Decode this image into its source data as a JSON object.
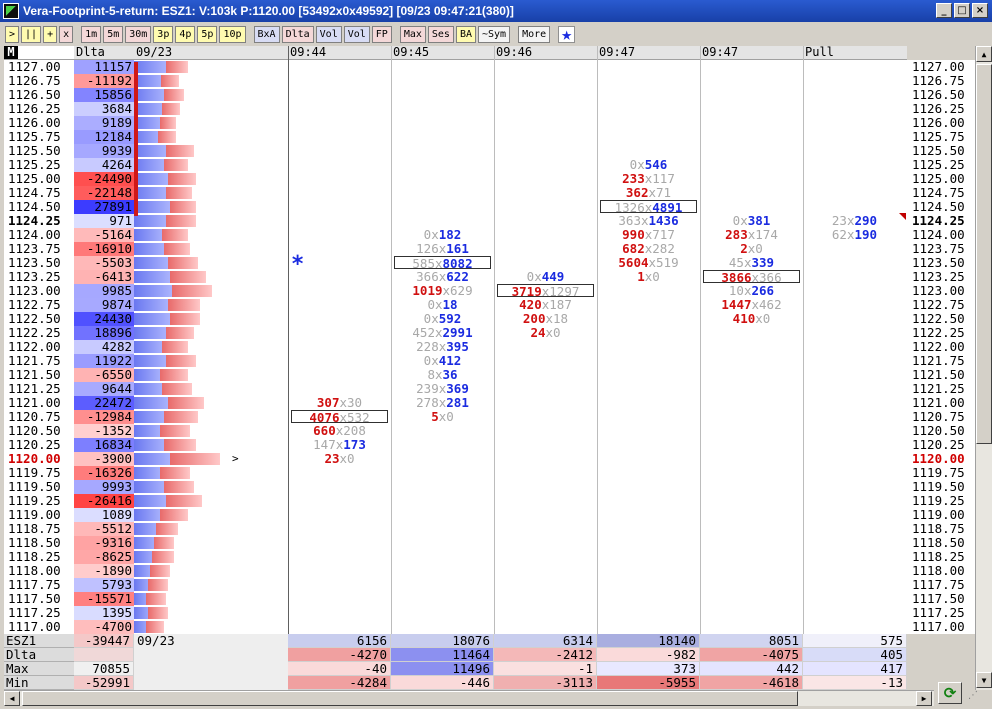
{
  "window": {
    "title": "Vera-Footprint-5-return: ESZ1: V:103k P:1120.00 [53492x0x49592] [09/23 09:47:21(380)]",
    "buttons": [
      "_",
      "□",
      "×"
    ]
  },
  "toolbar": {
    "buttons": [
      {
        "label": ">",
        "style": "y"
      },
      {
        "label": "||",
        "style": "y"
      },
      {
        "label": "+",
        "style": "y"
      },
      {
        "label": "x",
        "style": "p"
      },
      {
        "label": "1m",
        "style": "p"
      },
      {
        "label": "5m",
        "style": "p"
      },
      {
        "label": "30m",
        "style": "p"
      },
      {
        "label": "3p",
        "style": "y"
      },
      {
        "label": "4p",
        "style": "y"
      },
      {
        "label": "5p",
        "style": "y"
      },
      {
        "label": "10p",
        "style": "y"
      },
      {
        "label": "BxA",
        "style": "b"
      },
      {
        "label": "Dlta",
        "style": "p"
      },
      {
        "label": "Vol",
        "style": "b"
      },
      {
        "label": "Vol",
        "style": "b"
      },
      {
        "label": "FP",
        "style": "p"
      },
      {
        "label": "Max",
        "style": "p"
      },
      {
        "label": "Ses",
        "style": "p"
      },
      {
        "label": "BA",
        "style": "y"
      },
      {
        "label": "~Sym",
        "style": ""
      },
      {
        "label": "More",
        "style": ""
      }
    ],
    "star_icon": "star-icon"
  },
  "columns": {
    "m_label": "M",
    "delta_label": "Dlta",
    "date_label": "09/23",
    "times": [
      {
        "label": "09:44",
        "tick": "none"
      },
      {
        "label": "09:45",
        "tick": "red"
      },
      {
        "label": "09:46",
        "tick": "green"
      },
      {
        "label": "09:47",
        "tick": "red"
      },
      {
        "label": "09:47",
        "tick": "green"
      },
      {
        "label": "Pull",
        "tick": "red"
      }
    ]
  },
  "prices": [
    "1127.00",
    "1126.75",
    "1126.50",
    "1126.25",
    "1126.00",
    "1125.75",
    "1125.50",
    "1125.25",
    "1125.00",
    "1124.75",
    "1124.50",
    "1124.25",
    "1124.00",
    "1123.75",
    "1123.50",
    "1123.25",
    "1123.00",
    "1122.75",
    "1122.50",
    "1122.25",
    "1122.00",
    "1121.75",
    "1121.50",
    "1121.25",
    "1121.00",
    "1120.75",
    "1120.50",
    "1120.25",
    "1120.00",
    "1119.75",
    "1119.50",
    "1119.25",
    "1119.00",
    "1118.75",
    "1118.50",
    "1118.25",
    "1118.00",
    "1117.75",
    "1117.50",
    "1117.25",
    "1117.00"
  ],
  "current_price": "1120.00",
  "bold_price": "1124.25",
  "deltas": [
    "11157",
    "-11192",
    "15856",
    "3684",
    "9189",
    "12184",
    "9939",
    "4264",
    "-24490",
    "-22148",
    "27891",
    "971",
    "-5164",
    "-16910",
    "-5503",
    "-6413",
    "9985",
    "9874",
    "24430",
    "18896",
    "4282",
    "11922",
    "-6550",
    "9644",
    "22472",
    "-12984",
    "-1352",
    "16834",
    "-3900",
    "-16326",
    "9993",
    "-26416",
    "1089",
    "-5512",
    "-9316",
    "-8625",
    "-1890",
    "5793",
    "-15571",
    "1395",
    "-4700"
  ],
  "profile": [
    [
      40,
      22,
      0
    ],
    [
      35,
      18,
      0
    ],
    [
      38,
      20,
      0
    ],
    [
      36,
      18,
      0
    ],
    [
      34,
      16,
      0
    ],
    [
      32,
      18,
      0
    ],
    [
      40,
      28,
      0
    ],
    [
      38,
      24,
      0
    ],
    [
      42,
      28,
      0
    ],
    [
      40,
      26,
      0
    ],
    [
      44,
      26,
      0
    ],
    [
      40,
      30,
      0
    ],
    [
      36,
      26,
      0
    ],
    [
      38,
      26,
      0
    ],
    [
      42,
      30,
      0
    ],
    [
      44,
      36,
      0
    ],
    [
      46,
      40,
      0
    ],
    [
      42,
      32,
      0
    ],
    [
      44,
      30,
      0
    ],
    [
      40,
      28,
      0
    ],
    [
      36,
      26,
      0
    ],
    [
      40,
      30,
      0
    ],
    [
      34,
      28,
      0
    ],
    [
      36,
      30,
      0
    ],
    [
      42,
      36,
      0
    ],
    [
      38,
      34,
      0
    ],
    [
      34,
      30,
      0
    ],
    [
      38,
      32,
      0
    ],
    [
      44,
      50,
      1
    ],
    [
      34,
      30,
      0
    ],
    [
      38,
      30,
      0
    ],
    [
      40,
      36,
      0
    ],
    [
      34,
      28,
      0
    ],
    [
      30,
      22,
      0
    ],
    [
      28,
      20,
      0
    ],
    [
      26,
      22,
      0
    ],
    [
      24,
      20,
      0
    ],
    [
      22,
      20,
      0
    ],
    [
      20,
      20,
      0
    ],
    [
      22,
      20,
      0
    ],
    [
      20,
      18,
      0
    ]
  ],
  "current_marker": ">",
  "footprint": [
    {
      "col": 0,
      "row": 24,
      "bid": "307",
      "ask": "30",
      "style": "r"
    },
    {
      "col": 0,
      "row": 25,
      "bid": "4076",
      "ask": "532",
      "style": "r",
      "box": true
    },
    {
      "col": 0,
      "row": 26,
      "bid": "660",
      "ask": "208",
      "style": "r"
    },
    {
      "col": 0,
      "row": 27,
      "bid": "147",
      "ask": "173",
      "style": "b"
    },
    {
      "col": 0,
      "row": 28,
      "bid": "23",
      "ask": "0",
      "style": "r"
    },
    {
      "col": 1,
      "row": 12,
      "bid": "0",
      "ask": "182",
      "style": "b"
    },
    {
      "col": 1,
      "row": 13,
      "bid": "126",
      "ask": "161",
      "style": "b"
    },
    {
      "col": 1,
      "row": 14,
      "bid": "585",
      "ask": "8082",
      "style": "b",
      "box": true
    },
    {
      "col": 1,
      "row": 15,
      "bid": "366",
      "ask": "622",
      "style": "b"
    },
    {
      "col": 1,
      "row": 16,
      "bid": "1019",
      "ask": "629",
      "style": "r"
    },
    {
      "col": 1,
      "row": 17,
      "bid": "0",
      "ask": "18",
      "style": "b"
    },
    {
      "col": 1,
      "row": 18,
      "bid": "0",
      "ask": "592",
      "style": "b"
    },
    {
      "col": 1,
      "row": 19,
      "bid": "452",
      "ask": "2991",
      "style": "b"
    },
    {
      "col": 1,
      "row": 20,
      "bid": "228",
      "ask": "395",
      "style": "b"
    },
    {
      "col": 1,
      "row": 21,
      "bid": "0",
      "ask": "412",
      "style": "b"
    },
    {
      "col": 1,
      "row": 22,
      "bid": "8",
      "ask": "36",
      "style": "b"
    },
    {
      "col": 1,
      "row": 23,
      "bid": "239",
      "ask": "369",
      "style": "b"
    },
    {
      "col": 1,
      "row": 24,
      "bid": "278",
      "ask": "281",
      "style": "b"
    },
    {
      "col": 1,
      "row": 25,
      "bid": "5",
      "ask": "0",
      "style": "r"
    },
    {
      "col": 2,
      "row": 15,
      "bid": "0",
      "ask": "449",
      "style": "b"
    },
    {
      "col": 2,
      "row": 16,
      "bid": "3719",
      "ask": "1297",
      "style": "r",
      "box": true
    },
    {
      "col": 2,
      "row": 17,
      "bid": "420",
      "ask": "187",
      "style": "r"
    },
    {
      "col": 2,
      "row": 18,
      "bid": "200",
      "ask": "18",
      "style": "r"
    },
    {
      "col": 2,
      "row": 19,
      "bid": "24",
      "ask": "0",
      "style": "r"
    },
    {
      "col": 3,
      "row": 7,
      "bid": "0",
      "ask": "546",
      "style": "b"
    },
    {
      "col": 3,
      "row": 8,
      "bid": "233",
      "ask": "117",
      "style": "r"
    },
    {
      "col": 3,
      "row": 9,
      "bid": "362",
      "ask": "71",
      "style": "r"
    },
    {
      "col": 3,
      "row": 10,
      "bid": "1326",
      "ask": "4891",
      "style": "b",
      "box": true
    },
    {
      "col": 3,
      "row": 11,
      "bid": "363",
      "ask": "1436",
      "style": "b"
    },
    {
      "col": 3,
      "row": 12,
      "bid": "990",
      "ask": "717",
      "style": "r"
    },
    {
      "col": 3,
      "row": 13,
      "bid": "682",
      "ask": "282",
      "style": "r"
    },
    {
      "col": 3,
      "row": 14,
      "bid": "5604",
      "ask": "519",
      "style": "r"
    },
    {
      "col": 3,
      "row": 15,
      "bid": "1",
      "ask": "0",
      "style": "r"
    },
    {
      "col": 4,
      "row": 11,
      "bid": "0",
      "ask": "381",
      "style": "b"
    },
    {
      "col": 4,
      "row": 12,
      "bid": "283",
      "ask": "174",
      "style": "r"
    },
    {
      "col": 4,
      "row": 13,
      "bid": "2",
      "ask": "0",
      "style": "r"
    },
    {
      "col": 4,
      "row": 14,
      "bid": "45",
      "ask": "339",
      "style": "b"
    },
    {
      "col": 4,
      "row": 15,
      "bid": "3866",
      "ask": "366",
      "style": "r",
      "box": true
    },
    {
      "col": 4,
      "row": 16,
      "bid": "10",
      "ask": "266",
      "style": "b"
    },
    {
      "col": 4,
      "row": 17,
      "bid": "1447",
      "ask": "462",
      "style": "r"
    },
    {
      "col": 4,
      "row": 18,
      "bid": "410",
      "ask": "0",
      "style": "r"
    },
    {
      "col": 5,
      "row": 11,
      "bid": "23",
      "ask": "290",
      "style": "b"
    },
    {
      "col": 5,
      "row": 12,
      "bid": "62",
      "ask": "190",
      "style": "b"
    }
  ],
  "marker_star": {
    "col": 0,
    "row": 14,
    "icon": "star-icon",
    "glyph": "*"
  },
  "footer": {
    "date": "09/23",
    "rows": [
      {
        "label": "ESZ1",
        "summary": "-39447",
        "values": [
          "6156",
          "18076",
          "6314",
          "18140",
          "8051",
          "575"
        ]
      },
      {
        "label": "Dlta",
        "summary": "",
        "values": [
          "-4270",
          "11464",
          "-2412",
          "-982",
          "-4075",
          "405"
        ]
      },
      {
        "label": "Max",
        "summary": "70855",
        "values": [
          "-40",
          "11496",
          "-1",
          "373",
          "442",
          "417"
        ]
      },
      {
        "label": "Min",
        "summary": "-52991",
        "values": [
          "-4284",
          "-446",
          "-3113",
          "-5955",
          "-4618",
          "-13"
        ]
      }
    ]
  },
  "colors": {
    "positive": "#1a2be0",
    "negative": "#d01010",
    "muted": "#a8a8a8",
    "current": "#d00000"
  }
}
